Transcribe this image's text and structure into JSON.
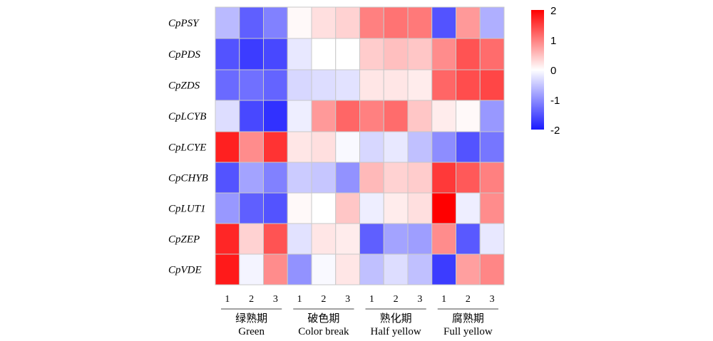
{
  "chart_data": {
    "type": "heatmap",
    "rows": [
      "CpPSY",
      "CpPDS",
      "CpZDS",
      "CpLCYB",
      "CpLCYE",
      "CpCHYB",
      "CpLUT1",
      "CpZEP",
      "CpVDE"
    ],
    "replicates": [
      "1",
      "2",
      "3"
    ],
    "groups": [
      {
        "cn": "绿熟期",
        "en": "Green"
      },
      {
        "cn": "破色期",
        "en": "Color break"
      },
      {
        "cn": "熟化期",
        "en": "Half yellow"
      },
      {
        "cn": "腐熟期",
        "en": "Full yellow"
      }
    ],
    "values": [
      [
        -0.6,
        -1.4,
        -1.1,
        0.05,
        0.25,
        0.35,
        1.0,
        1.1,
        1.05,
        -1.5,
        0.8,
        -0.7
      ],
      [
        -1.5,
        -1.7,
        -1.6,
        -0.2,
        0.0,
        0.0,
        0.4,
        0.5,
        0.45,
        0.9,
        1.35,
        1.15
      ],
      [
        -1.3,
        -1.25,
        -1.35,
        -0.35,
        -0.3,
        -0.25,
        0.2,
        0.2,
        0.15,
        1.2,
        1.4,
        1.45
      ],
      [
        -0.3,
        -1.6,
        -1.8,
        -0.15,
        0.8,
        1.2,
        1.0,
        1.15,
        0.45,
        0.15,
        0.05,
        -0.9
      ],
      [
        1.75,
        0.9,
        1.6,
        0.2,
        0.25,
        -0.05,
        -0.35,
        -0.2,
        -0.55,
        -1.0,
        -1.5,
        -1.2
      ],
      [
        -1.5,
        -0.8,
        -1.1,
        -0.45,
        -0.5,
        -0.95,
        0.55,
        0.35,
        0.4,
        1.55,
        1.3,
        1.0
      ],
      [
        -0.9,
        -1.4,
        -1.5,
        0.05,
        0.0,
        0.45,
        -0.15,
        0.15,
        0.25,
        2.0,
        -0.15,
        0.9
      ],
      [
        1.7,
        0.35,
        1.35,
        -0.25,
        0.2,
        0.15,
        -1.4,
        -0.8,
        -0.85,
        0.9,
        -1.45,
        -0.2
      ],
      [
        1.8,
        -0.1,
        0.9,
        -0.95,
        -0.05,
        0.2,
        -0.55,
        -0.3,
        -0.55,
        -1.7,
        0.75,
        0.95
      ]
    ],
    "colorbar": {
      "ticks": [
        "2",
        "1",
        "0",
        "-1",
        "-2"
      ],
      "min": -2,
      "max": 2,
      "colors": {
        "low": "#1a1aff",
        "mid": "#ffffff",
        "high": "#ff0000"
      }
    }
  }
}
